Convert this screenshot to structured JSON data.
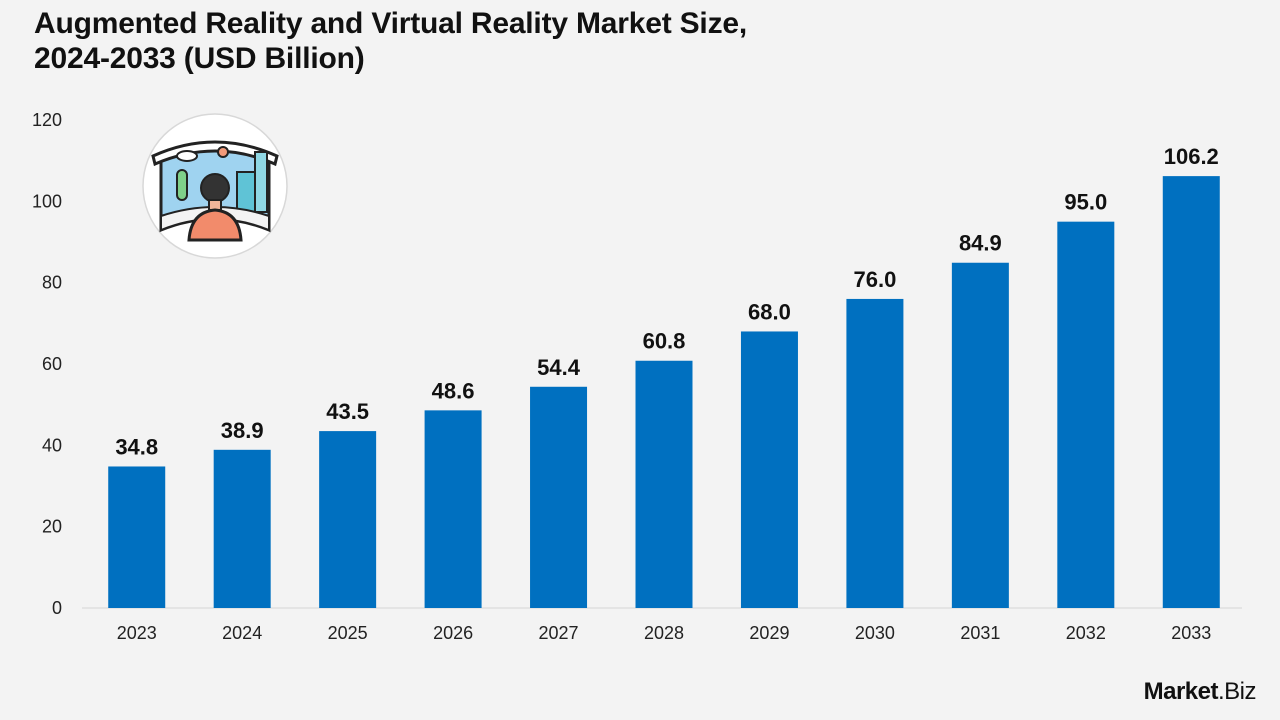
{
  "title": {
    "line1": "Augmented Reality and Virtual Reality Market Size,",
    "line2": "2024-2033 (USD Billion)"
  },
  "chart_data": {
    "type": "bar",
    "categories": [
      "2023",
      "2024",
      "2025",
      "2026",
      "2027",
      "2028",
      "2029",
      "2030",
      "2031",
      "2032",
      "2033"
    ],
    "values": [
      34.8,
      38.9,
      43.5,
      48.6,
      54.4,
      60.8,
      68.0,
      76.0,
      84.9,
      95.0,
      106.2
    ],
    "value_labels": [
      "34.8",
      "38.9",
      "43.5",
      "48.6",
      "54.4",
      "60.8",
      "68.0",
      "76.0",
      "84.9",
      "95.0",
      "106.2"
    ],
    "ylim": [
      0,
      120
    ],
    "yticks": [
      0,
      20,
      40,
      60,
      80,
      100,
      120
    ],
    "bar_color": "#0070c0",
    "grid": false,
    "legend": "none"
  },
  "brand": {
    "name": "Market",
    "suffix": ".Biz"
  },
  "icon": "ar-vr-headset-user-icon"
}
